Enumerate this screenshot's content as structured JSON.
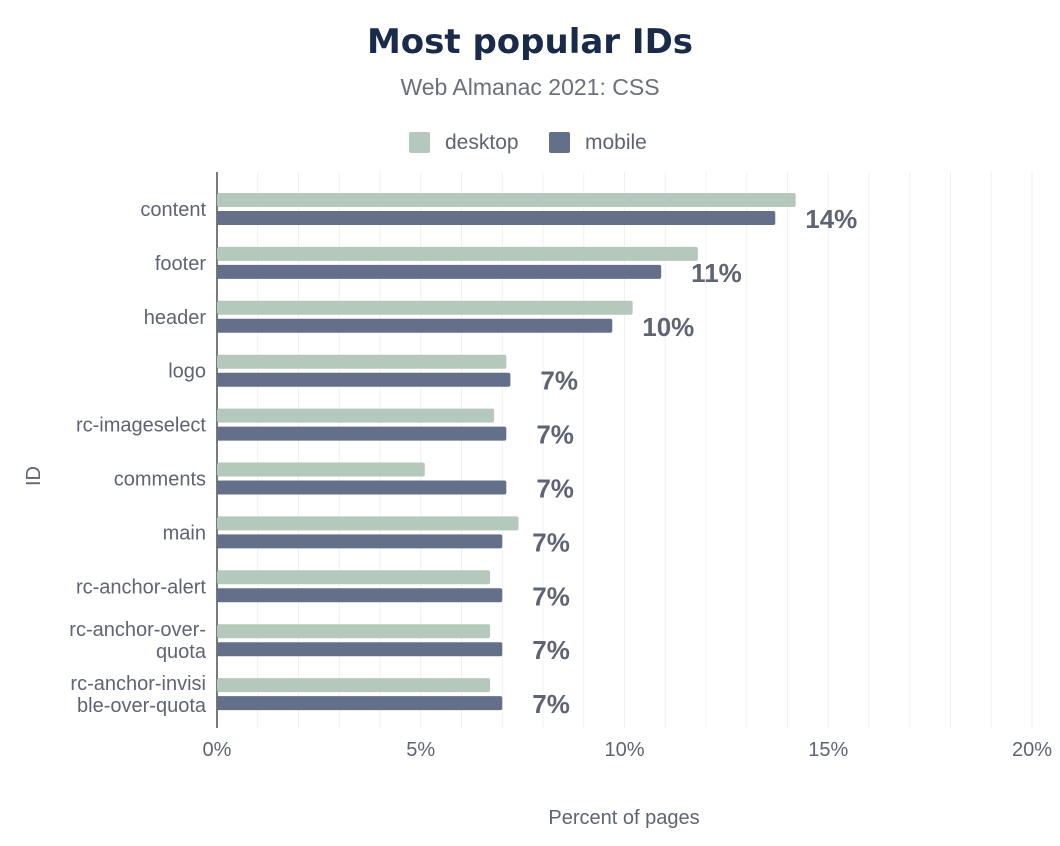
{
  "chart_data": {
    "type": "bar",
    "orientation": "horizontal",
    "title": "Most popular IDs",
    "subtitle": "Web Almanac 2021: CSS",
    "xlabel": "Percent of pages",
    "ylabel": "ID",
    "xlim": [
      0,
      20
    ],
    "x_ticks": [
      "0%",
      "5%",
      "10%",
      "15%",
      "20%"
    ],
    "categories": [
      [
        "content"
      ],
      [
        "footer"
      ],
      [
        "header"
      ],
      [
        "logo"
      ],
      [
        "rc-imageselect"
      ],
      [
        "comments"
      ],
      [
        "main"
      ],
      [
        "rc-anchor-alert"
      ],
      [
        "rc-anchor-over-",
        "quota"
      ],
      [
        "rc-anchor-invisi",
        "ble-over-quota"
      ]
    ],
    "series": [
      {
        "name": "desktop",
        "color": "#b4c9bb",
        "values": [
          14.2,
          11.8,
          10.2,
          7.1,
          6.8,
          5.1,
          7.4,
          6.7,
          6.7,
          6.7
        ]
      },
      {
        "name": "mobile",
        "color": "#64708a",
        "values": [
          13.7,
          10.9,
          9.7,
          7.2,
          7.1,
          7.1,
          7.0,
          7.0,
          7.0,
          7.0
        ]
      }
    ],
    "data_labels": [
      "14%",
      "11%",
      "10%",
      "7%",
      "7%",
      "7%",
      "7%",
      "7%",
      "7%",
      "7%"
    ],
    "legend_position": "top",
    "grid": true
  }
}
